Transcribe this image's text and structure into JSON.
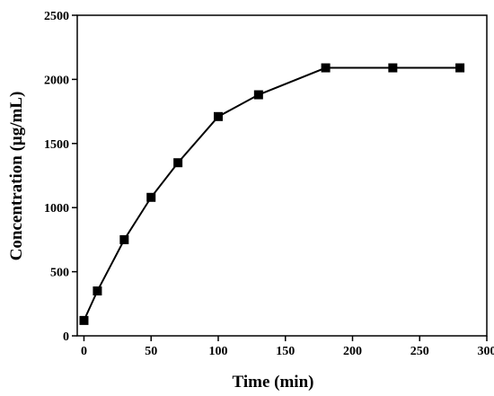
{
  "chart_data": {
    "type": "line",
    "title": "",
    "xlabel": "Time (min)",
    "ylabel": "Concentration (μg/mL)",
    "xlim": [
      -5,
      300
    ],
    "ylim": [
      0,
      2500
    ],
    "xticks": [
      0,
      50,
      100,
      150,
      200,
      250,
      300
    ],
    "yticks": [
      0,
      500,
      1000,
      1500,
      2000,
      2500
    ],
    "grid": false,
    "legend": "none",
    "marker": "square",
    "line_color": "#000000",
    "series": [
      {
        "x": [
          0,
          10,
          30,
          50,
          70,
          100,
          130,
          180,
          230,
          280
        ],
        "y": [
          120,
          350,
          750,
          1080,
          1350,
          1710,
          1880,
          2090,
          2090,
          2090
        ]
      }
    ]
  }
}
